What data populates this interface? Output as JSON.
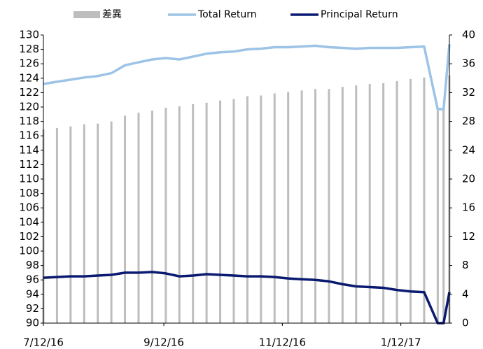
{
  "chart_data": {
    "type": "combo",
    "x": [
      "7/12/16",
      "7/19/16",
      "7/26/16",
      "8/2/16",
      "8/9/16",
      "8/16/16",
      "8/23/16",
      "8/30/16",
      "9/6/16",
      "9/13/16",
      "9/20/16",
      "9/27/16",
      "10/4/16",
      "10/11/16",
      "10/18/16",
      "10/25/16",
      "11/1/16",
      "11/8/16",
      "11/15/16",
      "11/22/16",
      "11/29/16",
      "12/6/16",
      "12/13/16",
      "12/20/16",
      "12/27/16",
      "1/3/17",
      "1/10/17",
      "1/17/17",
      "1/24/17",
      "1/31/17",
      "2/3/17",
      "2/6/17"
    ],
    "series": [
      {
        "name": "差異",
        "type": "bar",
        "axis": "y2",
        "color": "#bdbdbd",
        "values": [
          26.9,
          27.1,
          27.3,
          27.6,
          27.7,
          28.0,
          28.8,
          29.2,
          29.5,
          29.9,
          30.1,
          30.4,
          30.6,
          30.9,
          31.1,
          31.5,
          31.6,
          31.9,
          32.1,
          32.3,
          32.5,
          32.5,
          32.8,
          33.0,
          33.2,
          33.3,
          33.6,
          33.9,
          34.1,
          29.7,
          29.7,
          34.4
        ]
      },
      {
        "name": "Total Return",
        "type": "line",
        "color": "#9dc3e6",
        "values": [
          123.2,
          123.5,
          123.8,
          124.1,
          124.3,
          124.7,
          125.8,
          126.2,
          126.6,
          126.8,
          126.6,
          127.0,
          127.4,
          127.6,
          127.7,
          128.0,
          128.1,
          128.3,
          128.3,
          128.4,
          128.5,
          128.3,
          128.2,
          128.1,
          128.2,
          128.2,
          128.2,
          128.3,
          128.4,
          119.7,
          119.7,
          128.7
        ]
      },
      {
        "name": "Principal Return",
        "type": "line",
        "color": "#0a1a70",
        "values": [
          96.3,
          96.4,
          96.5,
          96.5,
          96.6,
          96.7,
          97.0,
          97.0,
          97.1,
          96.9,
          96.5,
          96.6,
          96.8,
          96.7,
          96.6,
          96.5,
          96.5,
          96.4,
          96.2,
          96.1,
          96.0,
          95.8,
          95.4,
          95.1,
          95.0,
          94.9,
          94.6,
          94.4,
          94.3,
          90.0,
          90.0,
          94.3
        ]
      }
    ],
    "xlim": [
      "7/12/16",
      "2/6/17"
    ],
    "xticks": [
      "7/12/16",
      "9/12/16",
      "11/12/16",
      "1/12/17"
    ],
    "ylim": [
      90,
      130
    ],
    "yticks": [
      90,
      92,
      94,
      96,
      98,
      100,
      102,
      104,
      106,
      108,
      110,
      112,
      114,
      116,
      118,
      120,
      122,
      124,
      126,
      128,
      130
    ],
    "y2lim": [
      0,
      40
    ],
    "y2ticks": [
      0,
      4,
      8,
      12,
      16,
      20,
      24,
      28,
      32,
      36,
      40
    ],
    "legend": "top"
  }
}
